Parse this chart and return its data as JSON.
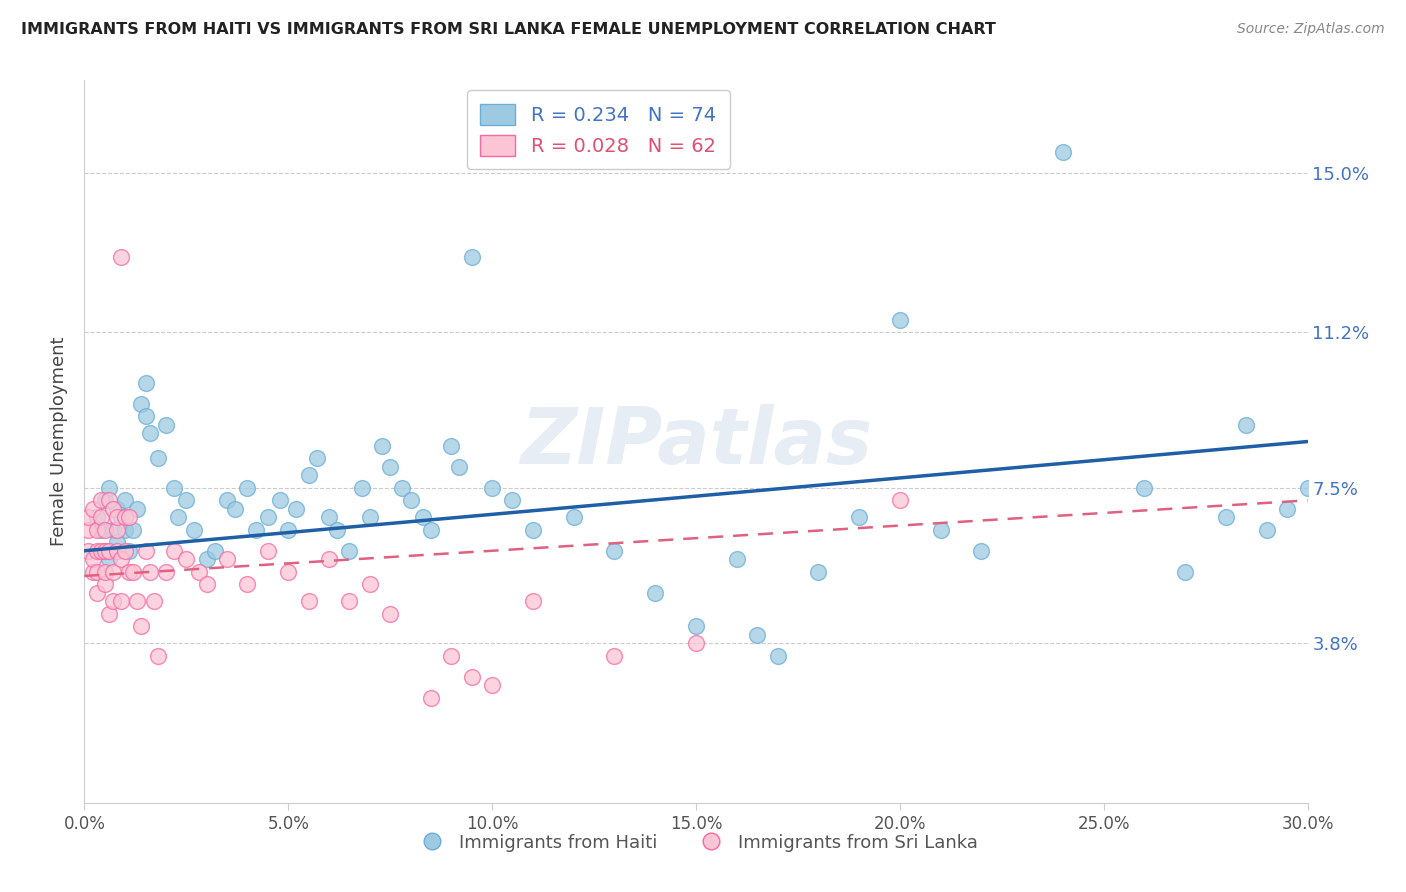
{
  "title": "IMMIGRANTS FROM HAITI VS IMMIGRANTS FROM SRI LANKA FEMALE UNEMPLOYMENT CORRELATION CHART",
  "source": "Source: ZipAtlas.com",
  "ylabel": "Female Unemployment",
  "x_min": 0.0,
  "x_max": 0.3,
  "y_min": 0.0,
  "y_max": 0.172,
  "right_yticks": [
    0.038,
    0.075,
    0.112,
    0.15
  ],
  "right_yticklabels": [
    "3.8%",
    "7.5%",
    "11.2%",
    "15.0%"
  ],
  "xtick_labels": [
    "0.0%",
    "5.0%",
    "10.0%",
    "15.0%",
    "20.0%",
    "25.0%",
    "30.0%"
  ],
  "xtick_values": [
    0.0,
    0.05,
    0.1,
    0.15,
    0.2,
    0.25,
    0.3
  ],
  "haiti_color_edge": "#6baed6",
  "haiti_color_fill": "#9ecae1",
  "srilanka_color_edge": "#f768a1",
  "srilanka_color_fill": "#fcc5d5",
  "trend_haiti_color": "#1f5fa6",
  "trend_srilanka_color": "#e06080",
  "haiti_R": 0.234,
  "haiti_N": 74,
  "srilanka_R": 0.028,
  "srilanka_N": 62,
  "legend_label_haiti": "Immigrants from Haiti",
  "legend_label_srilanka": "Immigrants from Sri Lanka",
  "watermark": "ZIPatlas",
  "haiti_x": [
    0.003,
    0.004,
    0.005,
    0.005,
    0.006,
    0.006,
    0.007,
    0.008,
    0.008,
    0.009,
    0.01,
    0.01,
    0.011,
    0.012,
    0.013,
    0.014,
    0.015,
    0.015,
    0.016,
    0.018,
    0.02,
    0.022,
    0.023,
    0.025,
    0.027,
    0.03,
    0.032,
    0.035,
    0.037,
    0.04,
    0.042,
    0.045,
    0.048,
    0.05,
    0.052,
    0.055,
    0.057,
    0.06,
    0.062,
    0.065,
    0.068,
    0.07,
    0.073,
    0.075,
    0.078,
    0.08,
    0.083,
    0.085,
    0.09,
    0.092,
    0.095,
    0.1,
    0.105,
    0.11,
    0.12,
    0.13,
    0.14,
    0.15,
    0.16,
    0.165,
    0.17,
    0.18,
    0.19,
    0.2,
    0.21,
    0.22,
    0.24,
    0.26,
    0.27,
    0.28,
    0.285,
    0.29,
    0.295,
    0.3
  ],
  "haiti_y": [
    0.068,
    0.065,
    0.06,
    0.072,
    0.058,
    0.075,
    0.065,
    0.062,
    0.07,
    0.068,
    0.065,
    0.072,
    0.06,
    0.065,
    0.07,
    0.095,
    0.1,
    0.092,
    0.088,
    0.082,
    0.09,
    0.075,
    0.068,
    0.072,
    0.065,
    0.058,
    0.06,
    0.072,
    0.07,
    0.075,
    0.065,
    0.068,
    0.072,
    0.065,
    0.07,
    0.078,
    0.082,
    0.068,
    0.065,
    0.06,
    0.075,
    0.068,
    0.085,
    0.08,
    0.075,
    0.072,
    0.068,
    0.065,
    0.085,
    0.08,
    0.13,
    0.075,
    0.072,
    0.065,
    0.068,
    0.06,
    0.05,
    0.042,
    0.058,
    0.04,
    0.035,
    0.055,
    0.068,
    0.115,
    0.065,
    0.06,
    0.155,
    0.075,
    0.055,
    0.068,
    0.09,
    0.065,
    0.07,
    0.075
  ],
  "srilanka_x": [
    0.001,
    0.001,
    0.001,
    0.002,
    0.002,
    0.002,
    0.003,
    0.003,
    0.003,
    0.003,
    0.004,
    0.004,
    0.004,
    0.005,
    0.005,
    0.005,
    0.005,
    0.006,
    0.006,
    0.006,
    0.007,
    0.007,
    0.007,
    0.008,
    0.008,
    0.008,
    0.009,
    0.009,
    0.009,
    0.01,
    0.01,
    0.011,
    0.011,
    0.012,
    0.013,
    0.014,
    0.015,
    0.016,
    0.017,
    0.018,
    0.02,
    0.022,
    0.025,
    0.028,
    0.03,
    0.035,
    0.04,
    0.045,
    0.05,
    0.055,
    0.06,
    0.065,
    0.07,
    0.075,
    0.085,
    0.09,
    0.095,
    0.1,
    0.11,
    0.13,
    0.15,
    0.2
  ],
  "srilanka_y": [
    0.06,
    0.065,
    0.068,
    0.055,
    0.07,
    0.058,
    0.05,
    0.065,
    0.06,
    0.055,
    0.06,
    0.068,
    0.072,
    0.052,
    0.06,
    0.065,
    0.055,
    0.072,
    0.045,
    0.06,
    0.055,
    0.07,
    0.048,
    0.06,
    0.065,
    0.068,
    0.13,
    0.058,
    0.048,
    0.06,
    0.068,
    0.055,
    0.068,
    0.055,
    0.048,
    0.042,
    0.06,
    0.055,
    0.048,
    0.035,
    0.055,
    0.06,
    0.058,
    0.055,
    0.052,
    0.058,
    0.052,
    0.06,
    0.055,
    0.048,
    0.058,
    0.048,
    0.052,
    0.045,
    0.025,
    0.035,
    0.03,
    0.028,
    0.048,
    0.035,
    0.038,
    0.072
  ]
}
